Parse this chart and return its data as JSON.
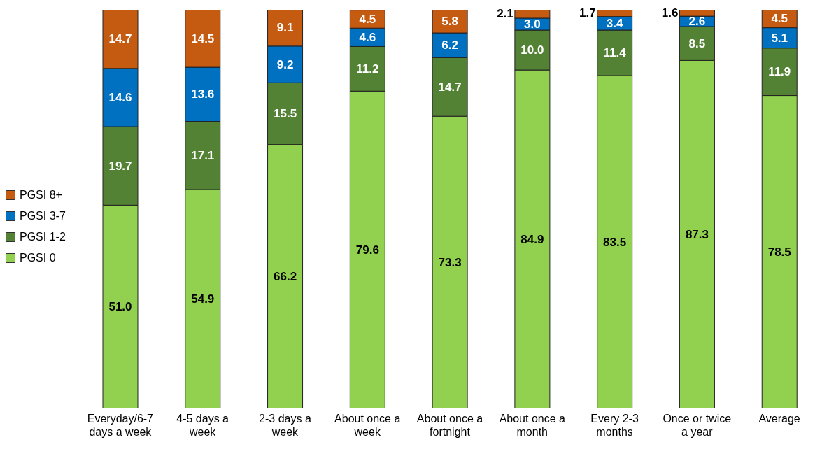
{
  "chart_data": {
    "type": "bar",
    "stacked": true,
    "categories": [
      "Everyday/6-7 days a week",
      "4-5 days a week",
      "2-3 days a week",
      "About once a week",
      "About once a fortnight",
      "About once a month",
      "Every 2-3 months",
      "Once or twice a year",
      "Average"
    ],
    "series": [
      {
        "name": "PGSI 0",
        "color": "#92d050",
        "values": [
          51.0,
          54.9,
          66.2,
          79.6,
          73.3,
          84.9,
          83.5,
          87.3,
          78.5
        ],
        "value_labels": [
          "51.0",
          "54.9",
          "66.2",
          "79.6",
          "73.3",
          "84.9",
          "83.5",
          "87.3",
          "78.5"
        ]
      },
      {
        "name": "PGSI 1-2",
        "color": "#548235",
        "values": [
          19.7,
          17.1,
          15.5,
          11.2,
          14.7,
          10.0,
          11.4,
          8.5,
          11.9
        ],
        "value_labels": [
          "19.7",
          "17.1",
          "15.5",
          "11.2",
          "14.7",
          "10.0",
          "11.4",
          "8.5",
          "11.9"
        ]
      },
      {
        "name": "PGSI 3-7",
        "color": "#0070c0",
        "values": [
          14.6,
          13.6,
          9.2,
          4.6,
          6.2,
          3.0,
          3.4,
          2.6,
          5.1
        ],
        "value_labels": [
          "14.6",
          "13.6",
          "9.2",
          "4.6",
          "6.2",
          "3.0",
          "3.4",
          "2.6",
          "5.1"
        ]
      },
      {
        "name": "PGSI 8+",
        "color": "#c55a11",
        "values": [
          14.7,
          14.5,
          9.1,
          4.5,
          5.8,
          2.1,
          1.7,
          1.6,
          4.5
        ],
        "value_labels": [
          "14.7",
          "14.5",
          "9.1",
          "4.5",
          "5.8",
          "2.1",
          "1.7",
          "1.6",
          "4.5"
        ]
      }
    ],
    "ylim": [
      0,
      100
    ],
    "tick_labels": "x",
    "legend": "left"
  }
}
